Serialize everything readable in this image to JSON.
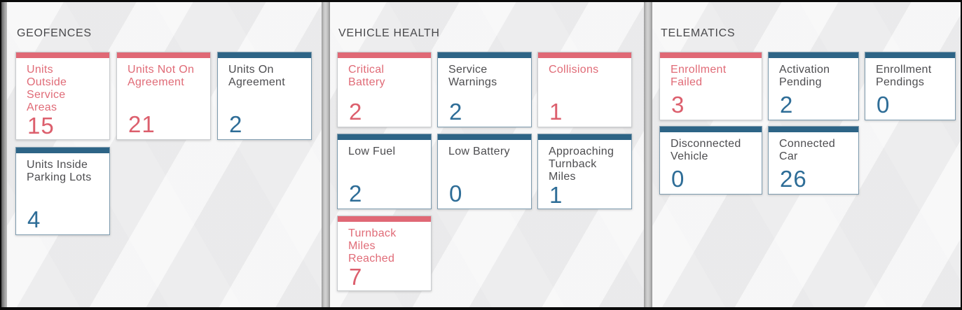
{
  "colors": {
    "red_bar": "#E06875",
    "red_text": "#E06B77",
    "red_value": "#DC5F6D",
    "blue_bar": "#2D6486",
    "blue_value": "#2E6D97",
    "label_text": "#4D4D50",
    "title_text": "#48484B",
    "panel_bg": "#F1F1F2",
    "card_bg": "#FFFFFF",
    "red_card_border": "#C8CBCE",
    "blue_card_border": "#7E9BAE"
  },
  "sections": [
    {
      "title": "GEOFENCES",
      "cards": [
        {
          "label": "Units Outside Service Areas",
          "value": "15",
          "accent": "red"
        },
        {
          "label": "Units Not On Agreement",
          "value": "21",
          "accent": "red"
        },
        {
          "label": "Units On Agreement",
          "value": "2",
          "accent": "blue"
        },
        {
          "label": "Units Inside Parking Lots",
          "value": "4",
          "accent": "blue"
        }
      ]
    },
    {
      "title": "VEHICLE HEALTH",
      "cards": [
        {
          "label": "Critical Battery",
          "value": "2",
          "accent": "red"
        },
        {
          "label": "Service Warnings",
          "value": "2",
          "accent": "blue"
        },
        {
          "label": "Collisions",
          "value": "1",
          "accent": "red"
        },
        {
          "label": "Low Fuel",
          "value": "2",
          "accent": "blue"
        },
        {
          "label": "Low Battery",
          "value": "0",
          "accent": "blue"
        },
        {
          "label": "Approaching Turnback Miles",
          "value": "1",
          "accent": "blue"
        },
        {
          "label": "Turnback Miles Reached",
          "value": "7",
          "accent": "red"
        }
      ]
    },
    {
      "title": "TELEMATICS",
      "cards": [
        {
          "label": "Enrollment Failed",
          "value": "3",
          "accent": "red"
        },
        {
          "label": "Activation Pending",
          "value": "2",
          "accent": "blue"
        },
        {
          "label": "Enrollment Pendings",
          "value": "0",
          "accent": "blue"
        },
        {
          "label": "Disconnected Vehicle",
          "value": "0",
          "accent": "blue"
        },
        {
          "label": "Connected Car",
          "value": "26",
          "accent": "blue"
        }
      ]
    }
  ]
}
